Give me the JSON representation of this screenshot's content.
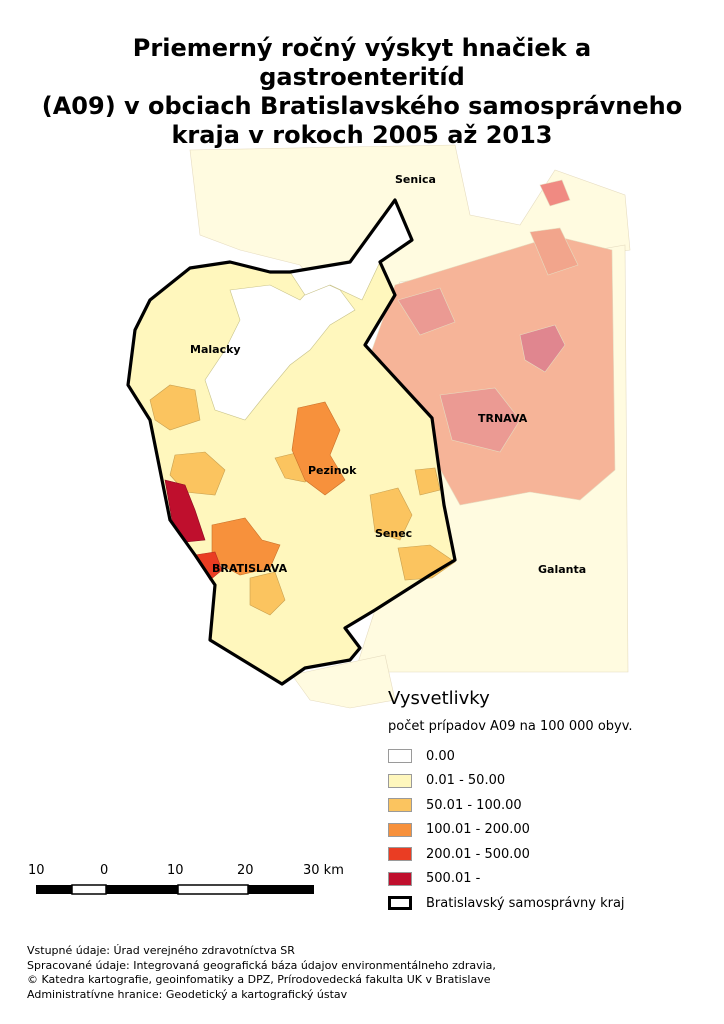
{
  "title": {
    "line1": "Priemerný ročný výskyt hnačiek a gastroenteritíd",
    "line2": "(A09) v obciach Bratislavského samosprávneho",
    "line3": "kraja v rokoch 2005 až 2013"
  },
  "map": {
    "cities": [
      {
        "name": "Senica"
      },
      {
        "name": "Malacky"
      },
      {
        "name": "TRNAVA"
      },
      {
        "name": "Pezinok"
      },
      {
        "name": "Senec"
      },
      {
        "name": "BRATISLAVA"
      },
      {
        "name": "Galanta"
      }
    ],
    "class_colors": {
      "c0": "#ffffff",
      "c1": "#fff7bd",
      "c2": "#fbc45f",
      "c3": "#f7913c",
      "c4": "#ea3d23",
      "c5": "#bf0f2d",
      "outside_north": "#fffbe0",
      "outside_east": "#f2a58c",
      "outside_east_dark": "#e0868f",
      "boundary": "#000000"
    }
  },
  "scale_bar": {
    "ticks": [
      "10",
      "0",
      "10",
      "20",
      "30 km"
    ]
  },
  "legend": {
    "title": "Vysvetlivky",
    "subtitle": "počet prípadov A09 na 100 000 obyv.",
    "items": [
      {
        "label": "0.00",
        "color": "#ffffff"
      },
      {
        "label": "0.01 - 50.00",
        "color": "#fff7bd"
      },
      {
        "label": "50.01 - 100.00",
        "color": "#fbc45f"
      },
      {
        "label": "100.01 - 200.00",
        "color": "#f7913c"
      },
      {
        "label": "200.01 - 500.00",
        "color": "#ea3d23"
      },
      {
        "label": "500.01 -",
        "color": "#bf0f2d"
      }
    ],
    "boundary_label": "Bratislavský samosprávny kraj"
  },
  "credits": {
    "line1": "Vstupné údaje: Úrad verejného zdravotníctva SR",
    "line2": "Spracované údaje: Integrovaná geografická báza údajov environmentálneho zdravia,",
    "line3": "© Katedra kartografie, geoinfomatiky a DPZ, Prírodovedecká fakulta UK v Bratislave",
    "line4": "Administratívne hranice: Geodetický a kartografický ústav"
  }
}
